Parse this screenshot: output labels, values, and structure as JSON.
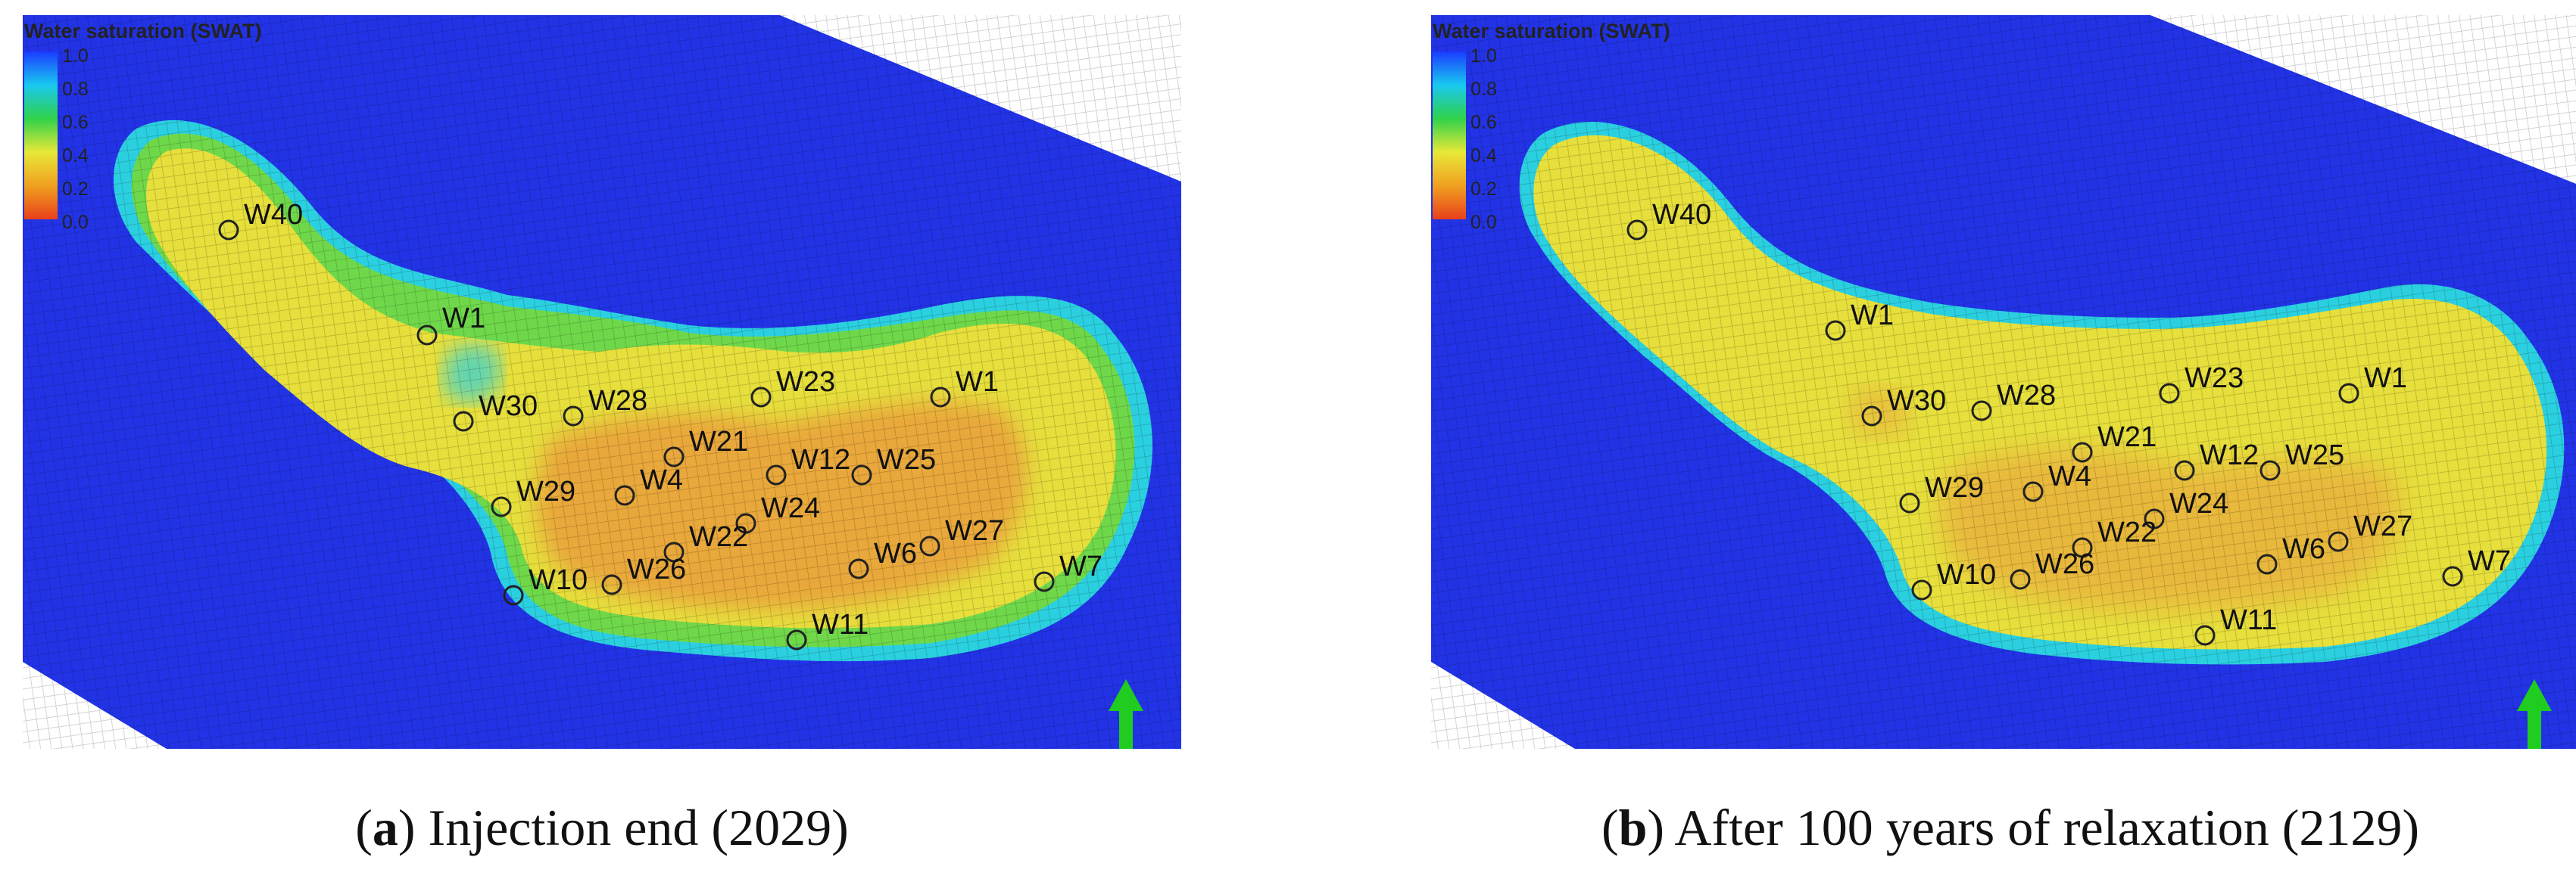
{
  "legend": {
    "title": "Water saturation (SWAT)",
    "ticks": [
      "1.0",
      "0.8",
      "0.6",
      "0.4",
      "0.2",
      "0.0"
    ],
    "color_stops": [
      "#1a3cff",
      "#19c8f0",
      "#2fd24a",
      "#e8e838",
      "#f0a020",
      "#e8401a"
    ]
  },
  "colors": {
    "background_water": "#2233e6",
    "rim_cyan": "#2bd0e0",
    "rim_green": "#6fd84a",
    "plume_yellow": "#e6df3c",
    "plume_orange": "#e9a83a",
    "north_arrow": "#1fcc1f"
  },
  "panels": [
    {
      "id": "a",
      "caption_letter": "a",
      "caption_text": ") Injection end (2029)",
      "caption_open": "(",
      "wells": [
        "W40",
        "W1",
        "W30",
        "W28",
        "W23",
        "W1",
        "W21",
        "W12",
        "W25",
        "W29",
        "W4",
        "W24",
        "W22",
        "W27",
        "W6",
        "W10",
        "W26",
        "W7",
        "W11"
      ]
    },
    {
      "id": "b",
      "caption_letter": "b",
      "caption_text": ") After 100 years of relaxation (2129)",
      "caption_open": "(",
      "wells": [
        "W40",
        "W1",
        "W30",
        "W28",
        "W23",
        "W1",
        "W21",
        "W12",
        "W25",
        "W29",
        "W4",
        "W24",
        "W22",
        "W27",
        "W6",
        "W10",
        "W26",
        "W7",
        "W11"
      ]
    }
  ]
}
